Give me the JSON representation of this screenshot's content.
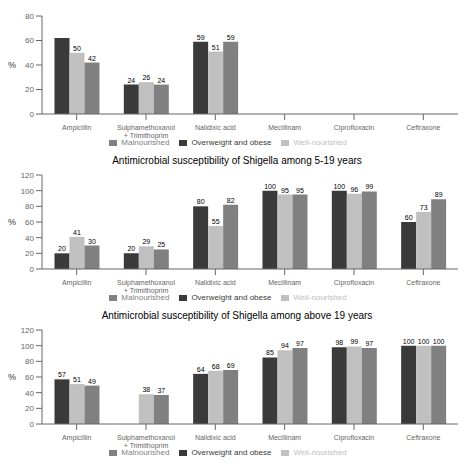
{
  "chart_data": [
    {
      "type": "bar",
      "categories": [
        "Ampicillin",
        "Sulphamethoxanol\n+ Trimithoprim",
        "Nalidixic acid",
        "Mecillinam",
        "Ciprofloxacin",
        "Ceftraxone"
      ],
      "series": [
        {
          "name": "Overweight and obese",
          "color": "#3a3a3a",
          "values": [
            62,
            24,
            59,
            null,
            null,
            null
          ],
          "value_labels": [
            null,
            "24",
            "59",
            null,
            null,
            null
          ]
        },
        {
          "name": "Well-nourished",
          "color": "#c0c0c0",
          "values": [
            50,
            26,
            51,
            null,
            null,
            null
          ]
        },
        {
          "name": "Malnourished",
          "color": "#808080",
          "values": [
            42,
            24,
            59,
            null,
            null,
            null
          ]
        }
      ],
      "ylabel": "%",
      "ylim": [
        0,
        80
      ],
      "yticks": [
        0,
        20,
        40,
        60,
        80
      ],
      "legend": "bottom",
      "grid": false,
      "data_labels": true
    },
    {
      "type": "bar",
      "title": "Antimicrobial susceptibility of Shigella among 5-19 years",
      "categories": [
        "Ampicillin",
        "Sulphamethoxanol\n+ Trimithoprim",
        "Nalidixic acid",
        "Mecillinam",
        "Ciprofloxacin",
        "Ceftraxone"
      ],
      "series": [
        {
          "name": "Overweight and obese",
          "color": "#3a3a3a",
          "values": [
            20,
            20,
            80,
            100,
            100,
            60
          ]
        },
        {
          "name": "Well-nourished",
          "color": "#c0c0c0",
          "values": [
            41,
            29,
            55,
            95,
            96,
            73
          ]
        },
        {
          "name": "Malnourished",
          "color": "#808080",
          "values": [
            30,
            25,
            82,
            95,
            99,
            89
          ]
        }
      ],
      "ylabel": "%",
      "ylim": [
        0,
        120
      ],
      "yticks": [
        0,
        20,
        40,
        60,
        80,
        100,
        120
      ],
      "legend": "bottom",
      "grid": false,
      "data_labels": true
    },
    {
      "type": "bar",
      "title": "Antimicrobial susceptibility of Shigella among above 19 years",
      "categories": [
        "Ampicillin",
        "Sulphamethoxanol\n+ Trimithoprim",
        "Nalidixic acid",
        "Mecillinam",
        "Ciprofloxacin",
        "Ceftraxone"
      ],
      "series": [
        {
          "name": "Overweight and obese",
          "color": "#3a3a3a",
          "values": [
            57,
            null,
            64,
            85,
            98,
            100
          ]
        },
        {
          "name": "Well-nourished",
          "color": "#c0c0c0",
          "values": [
            51,
            38,
            68,
            94,
            99,
            100
          ]
        },
        {
          "name": "Malnourished",
          "color": "#808080",
          "values": [
            49,
            37,
            69,
            97,
            97,
            100
          ]
        }
      ],
      "ylabel": "%",
      "ylim": [
        0,
        120
      ],
      "yticks": [
        0,
        20,
        40,
        60,
        80,
        100,
        120
      ],
      "legend": "bottom",
      "grid": false,
      "data_labels": true
    }
  ]
}
